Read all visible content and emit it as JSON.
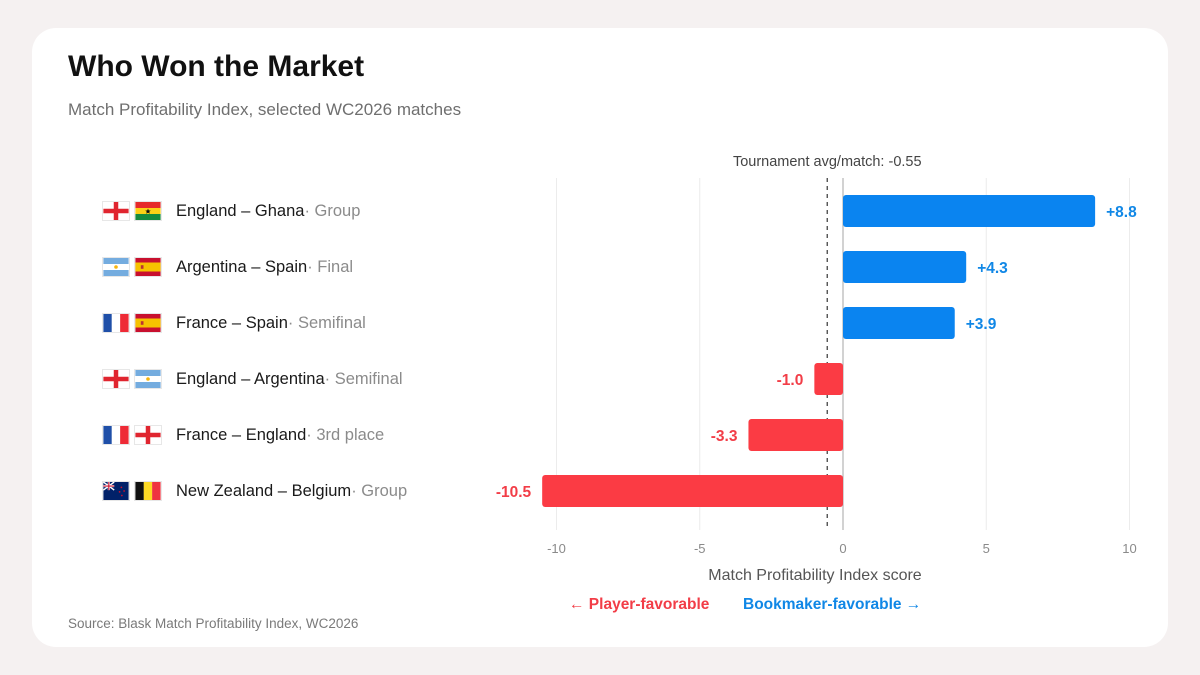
{
  "title": "Who Won the Market",
  "subtitle": "Match Profitability Index, selected WC2026 matches",
  "source": "Source: Blask Match Profitability Index, WC2026",
  "legend": {
    "player": "← Player-favorable",
    "bookmaker": "Bookmaker-favorable →"
  },
  "colors": {
    "positive": "#0a84f0",
    "negative": "#fb3b44",
    "positive_label": "#1087e6",
    "negative_label": "#f23d47"
  },
  "matches": [
    {
      "name": "England – Ghana",
      "stage": "· Group",
      "flags": [
        "england-flag",
        "ghana-flag"
      ]
    },
    {
      "name": "Argentina – Spain",
      "stage": "· Final",
      "flags": [
        "argentina-flag",
        "spain-flag"
      ]
    },
    {
      "name": "France – Spain",
      "stage": "· Semifinal",
      "flags": [
        "france-flag",
        "spain-flag"
      ]
    },
    {
      "name": "England – Argentina",
      "stage": "· Semifinal",
      "flags": [
        "england-flag",
        "argentina-flag"
      ]
    },
    {
      "name": "France – England",
      "stage": "· 3rd place",
      "flags": [
        "france-flag",
        "england-flag"
      ]
    },
    {
      "name": "New Zealand – Belgium",
      "stage": "· Group",
      "flags": [
        "new-zealand-flag",
        "belgium-flag"
      ]
    }
  ],
  "chart_data": {
    "type": "bar",
    "orientation": "horizontal",
    "categories": [
      "England – Ghana",
      "Argentina – Spain",
      "France – Spain",
      "England – Argentina",
      "France – England",
      "New Zealand – Belgium"
    ],
    "values": [
      8.8,
      4.3,
      3.9,
      -1.0,
      -3.3,
      -10.5
    ],
    "value_labels": [
      "+8.8",
      "+4.3",
      "+3.9",
      "-1.0",
      "-3.3",
      "-10.5"
    ],
    "xlabel": "Match Profitability Index score",
    "xlim": [
      -10.5,
      10
    ],
    "xticks": [
      -10,
      -5,
      0,
      5,
      10
    ],
    "xtick_labels": [
      "-10",
      "-5",
      "0",
      "5",
      "10"
    ],
    "grid": "vertical",
    "reference_line": {
      "value": -0.55,
      "label": "Tournament avg/match: -0.55",
      "style": "dashed"
    }
  }
}
